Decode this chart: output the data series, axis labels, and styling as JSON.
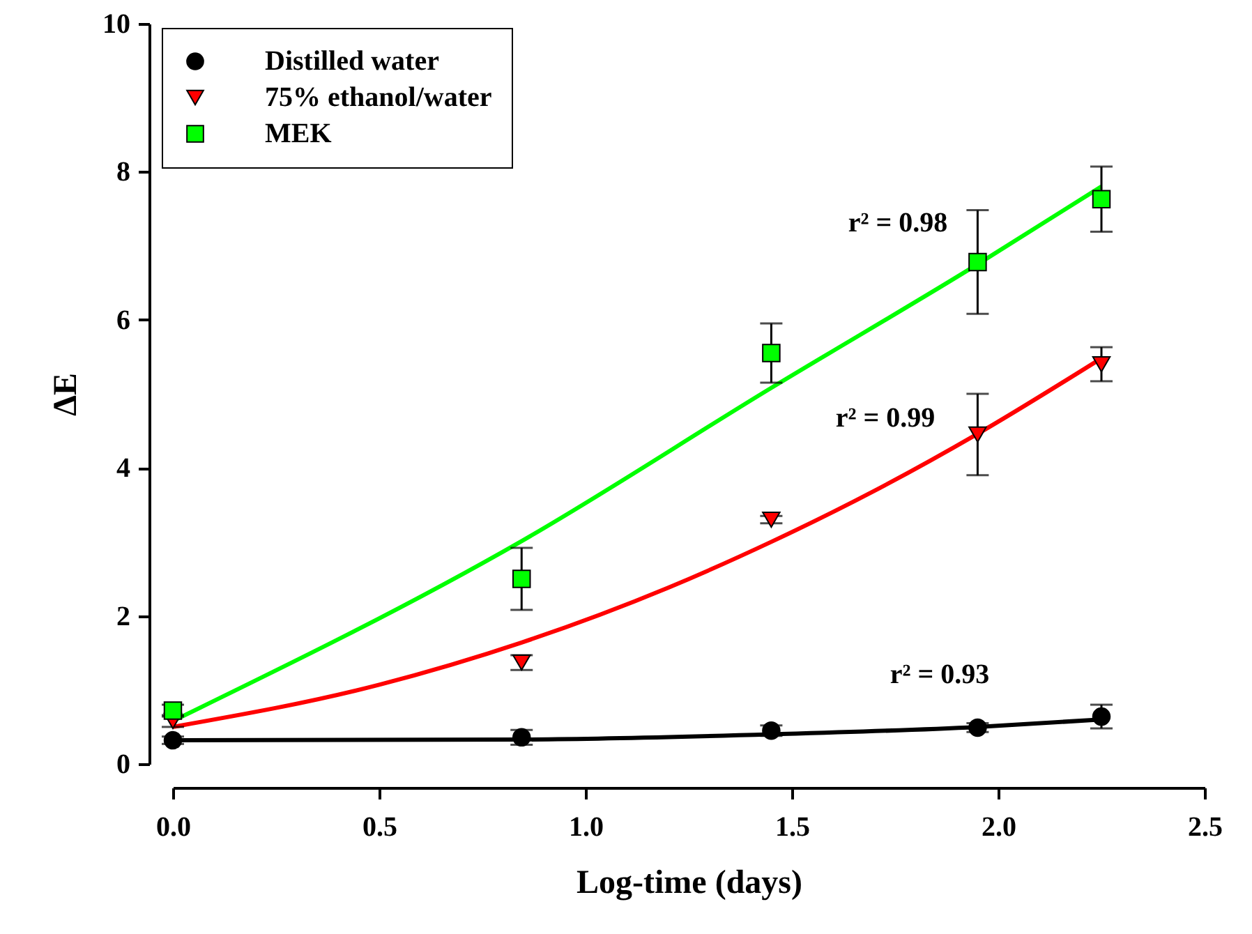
{
  "chart_data": {
    "type": "scatter",
    "xlabel": "Log-time (days)",
    "ylabel": "ΔE",
    "xlim": [
      0,
      2.5
    ],
    "ylim": [
      0,
      10
    ],
    "xticks": [
      {
        "value": 0,
        "label": "0.0"
      },
      {
        "value": 0.5,
        "label": "0.5"
      },
      {
        "value": 1,
        "label": "1.0"
      },
      {
        "value": 1.5,
        "label": "1.5"
      },
      {
        "value": 2,
        "label": "2.0"
      },
      {
        "value": 2.5,
        "label": "2.5"
      }
    ],
    "yticks": [
      0,
      2,
      4,
      6,
      8,
      10
    ],
    "grid": false,
    "legend": "top left",
    "series": [
      {
        "name": "Distilled water",
        "marker": "circle",
        "color": "#000000",
        "x": [
          0,
          0.845,
          1.45,
          1.95,
          2.25
        ],
        "values": [
          0.32,
          0.36,
          0.45,
          0.49,
          0.64
        ],
        "errors": [
          0.05,
          0.1,
          0.07,
          0.06,
          0.16
        ]
      },
      {
        "name": "75% ethanol/water",
        "marker": "triangle",
        "color": "#ff0000",
        "x": [
          0,
          0.845,
          1.45,
          1.95,
          2.25
        ],
        "values": [
          0.58,
          1.37,
          3.3,
          4.45,
          5.4
        ],
        "errors": [
          0.08,
          0.1,
          0.05,
          0.55,
          0.23
        ]
      },
      {
        "name": "MEK",
        "marker": "square",
        "color": "#00ff00",
        "x": [
          0,
          0.845,
          1.45,
          1.95,
          2.25
        ],
        "values": [
          0.72,
          2.5,
          5.55,
          6.78,
          7.63
        ],
        "errors": [
          0.08,
          0.42,
          0.4,
          0.7,
          0.44
        ]
      },
      {
        "type": "line",
        "marker": "none",
        "color": "#000000",
        "x": [
          0,
          0.845,
          1.45,
          1.95,
          2.25
        ],
        "values": [
          0.32,
          0.33,
          0.4,
          0.5,
          0.6
        ]
      },
      {
        "type": "line",
        "marker": "none",
        "color": "#ff0000",
        "x": [
          0,
          0.5,
          0.845,
          1.2,
          1.45,
          1.7,
          1.95,
          2.25
        ],
        "values": [
          0.5,
          1.07,
          1.64,
          2.38,
          3.0,
          3.69,
          4.46,
          5.48
        ]
      },
      {
        "type": "line",
        "marker": "none",
        "color": "#00ff00",
        "x": [
          0,
          0.845,
          1.45,
          1.95,
          2.25
        ],
        "values": [
          0.58,
          3.01,
          5.08,
          6.75,
          7.8
        ]
      }
    ],
    "annotations": [
      "r² = 0.98",
      "r² = 0.99",
      "r² = 0.93"
    ]
  }
}
